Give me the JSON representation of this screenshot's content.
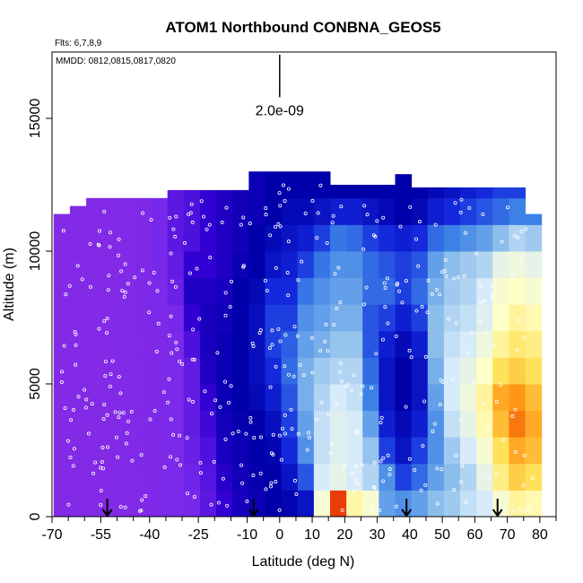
{
  "chart_data": {
    "type": "heatmap",
    "title": "ATOM1 Northbound CONBNA_GEOS5",
    "flights_note": "Flts: 6,7,8,9",
    "dates_note": "MMDD: 0812,0815,0817,0820",
    "xlabel": "Latitude (deg N)",
    "ylabel": "Altitude (m)",
    "xlim": [
      -70,
      85
    ],
    "ylim": [
      0,
      17500
    ],
    "x_ticks": [
      -70,
      -55,
      -40,
      -25,
      -10,
      0,
      10,
      20,
      30,
      40,
      50,
      60,
      70,
      80
    ],
    "x_tick_labels": [
      "-70",
      "-55",
      "-40",
      "-25",
      "-10",
      "0",
      "10",
      "20",
      "30",
      "40",
      "50",
      "60",
      "70",
      "80"
    ],
    "x_minor_ticks": [
      -65,
      -60,
      -50,
      -45,
      -35,
      -30,
      -20,
      -15,
      -5,
      5,
      15,
      25,
      35,
      45,
      55,
      65,
      75,
      85
    ],
    "y_ticks": [
      0,
      5000,
      10000,
      15000
    ],
    "y_tick_labels": [
      "0",
      "5000",
      "10000",
      "15000"
    ],
    "scale_bar": {
      "label": "2.0e-09",
      "x": 0,
      "y_bottom": 15800,
      "y_top": 17400
    },
    "flight_arrows_lat": [
      -53,
      -8,
      39,
      67
    ],
    "colors": {
      "low": "#8a2be2",
      "mid_low": "#0000aa",
      "mid": "#5dade2",
      "mid_high": "#ffffcc",
      "high": "#ff8c00",
      "max": "#dd0000"
    },
    "columns_lat": [
      -67,
      -62,
      -57,
      -52,
      -47,
      -42,
      -37,
      -32,
      -27,
      -22,
      -17,
      -12,
      -7,
      -2,
      3,
      8,
      13,
      18,
      23,
      28,
      33,
      38,
      43,
      48,
      53,
      58,
      63,
      68,
      73,
      78
    ],
    "column_top_altitude": [
      11400,
      11700,
      12000,
      12000,
      12000,
      12000,
      12000,
      12300,
      12300,
      12300,
      12300,
      12300,
      13000,
      13000,
      13000,
      13000,
      13000,
      12500,
      12500,
      12500,
      12500,
      12900,
      12400,
      12400,
      12400,
      12400,
      12400,
      12400,
      12400,
      11400
    ],
    "altitude_levels": [
      500,
      1500,
      2500,
      3500,
      4500,
      5500,
      6500,
      7500,
      8500,
      9500,
      10500,
      11500,
      12500
    ],
    "value_grid_note": "values 0-1 relative colour scale, rows = columns_lat, cols = altitude_levels",
    "value_grid": [
      [
        0.05,
        0.05,
        0.05,
        0.05,
        0.05,
        0.05,
        0.05,
        0.05,
        0.05,
        0.05,
        0.05,
        0.05,
        0.05
      ],
      [
        0.05,
        0.05,
        0.05,
        0.05,
        0.05,
        0.05,
        0.05,
        0.05,
        0.05,
        0.05,
        0.05,
        0.05,
        0.05
      ],
      [
        0.05,
        0.05,
        0.05,
        0.05,
        0.05,
        0.05,
        0.05,
        0.05,
        0.05,
        0.05,
        0.05,
        0.05,
        0.05
      ],
      [
        0.05,
        0.05,
        0.05,
        0.05,
        0.05,
        0.05,
        0.05,
        0.05,
        0.05,
        0.05,
        0.05,
        0.05,
        0.05
      ],
      [
        0.06,
        0.06,
        0.06,
        0.06,
        0.06,
        0.06,
        0.06,
        0.06,
        0.06,
        0.06,
        0.06,
        0.06,
        0.06
      ],
      [
        0.07,
        0.07,
        0.07,
        0.07,
        0.07,
        0.07,
        0.07,
        0.08,
        0.08,
        0.08,
        0.08,
        0.08,
        0.08
      ],
      [
        0.08,
        0.08,
        0.08,
        0.08,
        0.08,
        0.08,
        0.08,
        0.09,
        0.1,
        0.12,
        0.12,
        0.12,
        0.12
      ],
      [
        0.1,
        0.1,
        0.1,
        0.1,
        0.1,
        0.1,
        0.1,
        0.12,
        0.14,
        0.15,
        0.16,
        0.16,
        0.16
      ],
      [
        0.12,
        0.13,
        0.14,
        0.15,
        0.15,
        0.15,
        0.18,
        0.22,
        0.25,
        0.22,
        0.18,
        0.18,
        0.18
      ],
      [
        0.16,
        0.17,
        0.18,
        0.2,
        0.22,
        0.25,
        0.26,
        0.26,
        0.25,
        0.22,
        0.22,
        0.22,
        0.22
      ],
      [
        0.22,
        0.24,
        0.26,
        0.27,
        0.28,
        0.28,
        0.28,
        0.27,
        0.26,
        0.25,
        0.25,
        0.25,
        0.25
      ],
      [
        0.26,
        0.27,
        0.28,
        0.29,
        0.3,
        0.3,
        0.3,
        0.3,
        0.3,
        0.28,
        0.27,
        0.27,
        0.27
      ],
      [
        0.28,
        0.29,
        0.3,
        0.3,
        0.32,
        0.33,
        0.33,
        0.33,
        0.32,
        0.3,
        0.3,
        0.28,
        0.28
      ],
      [
        0.3,
        0.3,
        0.31,
        0.33,
        0.36,
        0.38,
        0.4,
        0.4,
        0.38,
        0.34,
        0.32,
        0.3,
        0.3
      ],
      [
        0.31,
        0.34,
        0.38,
        0.4,
        0.42,
        0.44,
        0.43,
        0.4,
        0.38,
        0.36,
        0.34,
        0.32,
        0.3
      ],
      [
        0.34,
        0.42,
        0.48,
        0.5,
        0.52,
        0.52,
        0.5,
        0.48,
        0.45,
        0.4,
        0.36,
        0.32,
        0.3
      ],
      [
        0.7,
        0.62,
        0.6,
        0.6,
        0.58,
        0.56,
        0.52,
        0.5,
        0.48,
        0.45,
        0.4,
        0.34,
        0.3
      ],
      [
        0.96,
        0.66,
        0.64,
        0.64,
        0.62,
        0.58,
        0.55,
        0.52,
        0.5,
        0.48,
        0.45,
        0.36,
        0.3
      ],
      [
        0.75,
        0.62,
        0.62,
        0.62,
        0.6,
        0.58,
        0.55,
        0.52,
        0.5,
        0.48,
        0.44,
        0.36,
        0.3
      ],
      [
        0.7,
        0.58,
        0.55,
        0.5,
        0.46,
        0.44,
        0.42,
        0.42,
        0.44,
        0.44,
        0.4,
        0.34,
        0.3
      ],
      [
        0.5,
        0.48,
        0.4,
        0.36,
        0.34,
        0.34,
        0.36,
        0.4,
        0.44,
        0.42,
        0.38,
        0.32,
        0.3
      ],
      [
        0.48,
        0.4,
        0.34,
        0.32,
        0.3,
        0.3,
        0.32,
        0.36,
        0.4,
        0.4,
        0.36,
        0.3,
        0.3
      ],
      [
        0.5,
        0.44,
        0.4,
        0.36,
        0.34,
        0.34,
        0.36,
        0.4,
        0.44,
        0.42,
        0.38,
        0.32,
        0.3
      ],
      [
        0.54,
        0.5,
        0.48,
        0.48,
        0.5,
        0.52,
        0.54,
        0.54,
        0.52,
        0.5,
        0.44,
        0.36,
        0.32
      ],
      [
        0.56,
        0.54,
        0.56,
        0.6,
        0.62,
        0.62,
        0.6,
        0.58,
        0.56,
        0.54,
        0.46,
        0.38,
        0.34
      ],
      [
        0.6,
        0.58,
        0.62,
        0.66,
        0.68,
        0.66,
        0.62,
        0.6,
        0.58,
        0.56,
        0.48,
        0.4,
        0.36
      ],
      [
        0.62,
        0.66,
        0.7,
        0.74,
        0.76,
        0.72,
        0.68,
        0.64,
        0.62,
        0.58,
        0.5,
        0.42,
        0.38
      ],
      [
        0.7,
        0.78,
        0.82,
        0.86,
        0.88,
        0.82,
        0.76,
        0.72,
        0.7,
        0.66,
        0.54,
        0.44,
        0.4
      ],
      [
        0.76,
        0.84,
        0.88,
        0.92,
        0.9,
        0.84,
        0.8,
        0.76,
        0.72,
        0.68,
        0.58,
        0.46,
        0.4
      ],
      [
        0.74,
        0.82,
        0.86,
        0.88,
        0.86,
        0.82,
        0.78,
        0.74,
        0.7,
        0.66,
        0.56,
        0.46,
        0.4
      ]
    ]
  }
}
